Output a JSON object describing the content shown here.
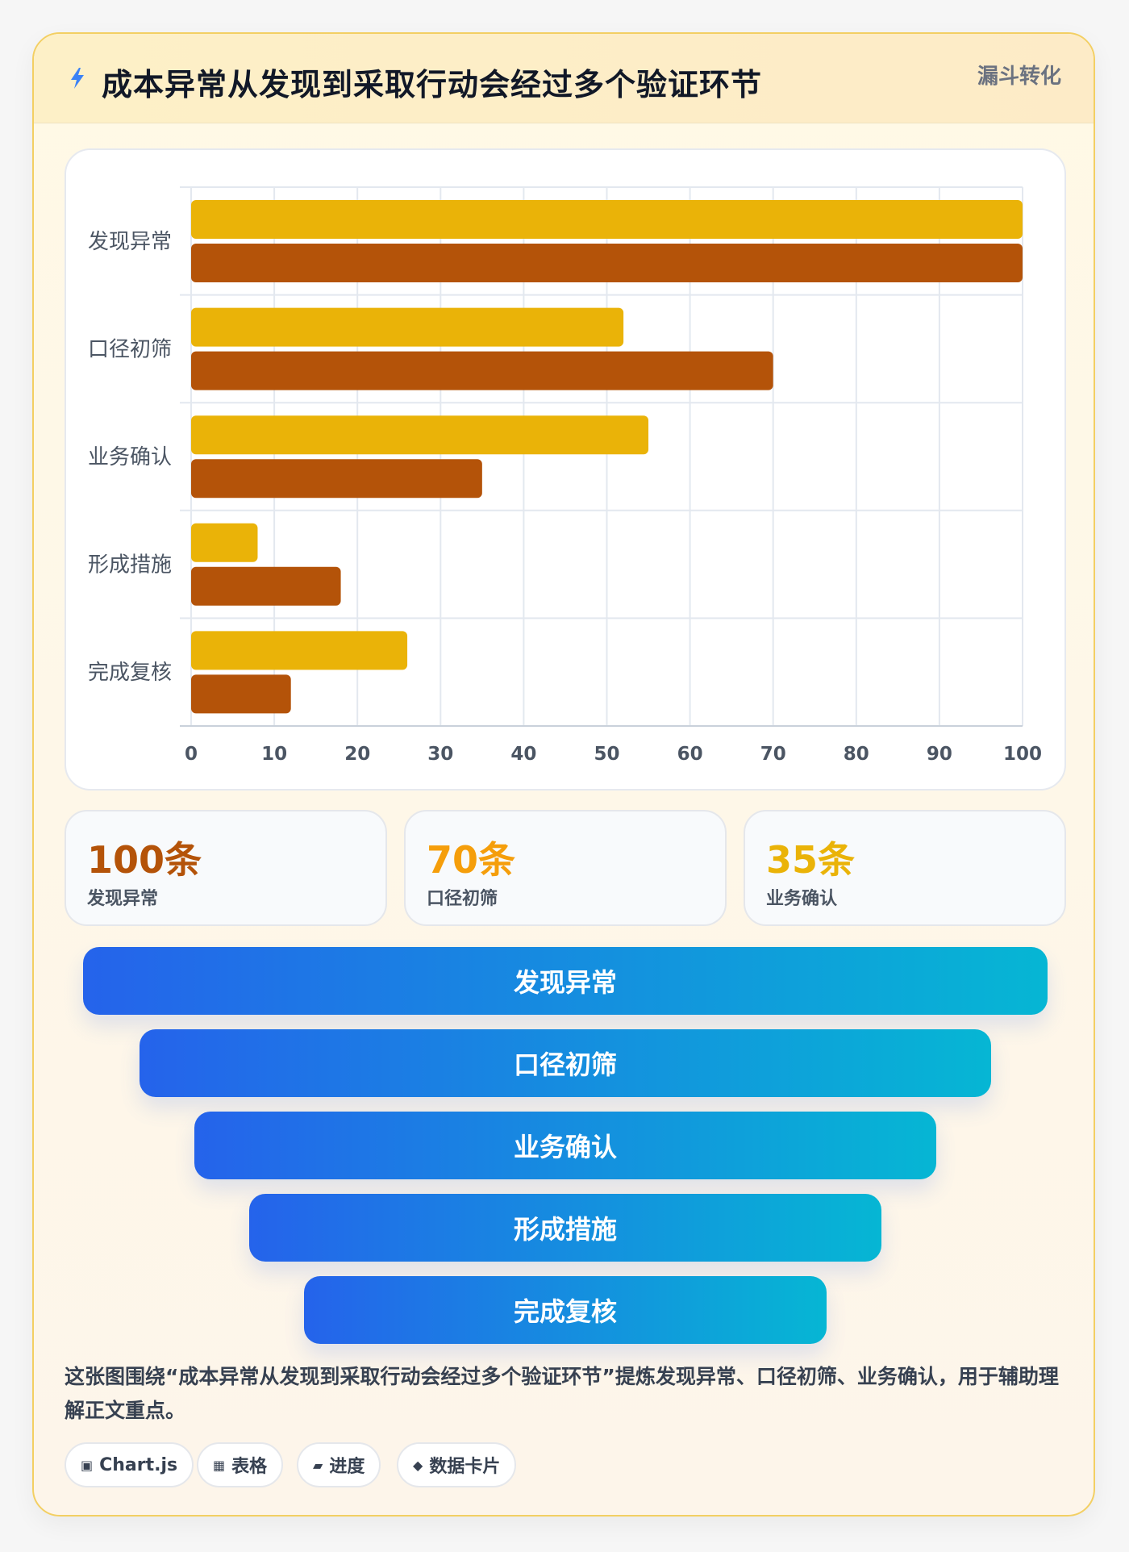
{
  "header": {
    "title": "成本异常从发现到采取行动会经过多个验证环节",
    "tag": "漏斗转化"
  },
  "chart_data": {
    "type": "bar",
    "orientation": "horizontal",
    "categories": [
      "发现异常",
      "口径初筛",
      "业务确认",
      "形成措施",
      "完成复核"
    ],
    "series": [
      {
        "values": [
          100,
          52,
          55,
          8,
          26
        ],
        "color": "#eab308"
      },
      {
        "values": [
          100,
          70,
          35,
          18,
          12
        ],
        "color": "#b45309"
      }
    ],
    "xlim": [
      0,
      100
    ],
    "x_ticks": [
      0,
      10,
      20,
      30,
      40,
      50,
      60,
      70,
      80,
      90,
      100
    ],
    "grid": true,
    "legend": "none"
  },
  "stats": [
    {
      "value": "100条",
      "label": "发现异常",
      "color": "#b45309"
    },
    {
      "value": "70条",
      "label": "口径初筛",
      "color": "#f59e0b"
    },
    {
      "value": "35条",
      "label": "业务确认",
      "color": "#eab308"
    }
  ],
  "funnel": [
    "发现异常",
    "口径初筛",
    "业务确认",
    "形成措施",
    "完成复核"
  ],
  "description": "这张图围绕“成本异常从发现到采取行动会经过多个验证环节”提炼发现异常、口径初筛、业务确认，用于辅助理解正文重点。",
  "chips": [
    {
      "icon": "▣",
      "icon_name": "chart-icon",
      "label": "Chart.js"
    },
    {
      "icon": "▦",
      "icon_name": "table-icon",
      "label": "表格"
    },
    {
      "icon": "▰",
      "icon_name": "progress-icon",
      "label": "进度"
    },
    {
      "icon": "◆",
      "icon_name": "data-card-icon",
      "label": "数据卡片"
    }
  ]
}
